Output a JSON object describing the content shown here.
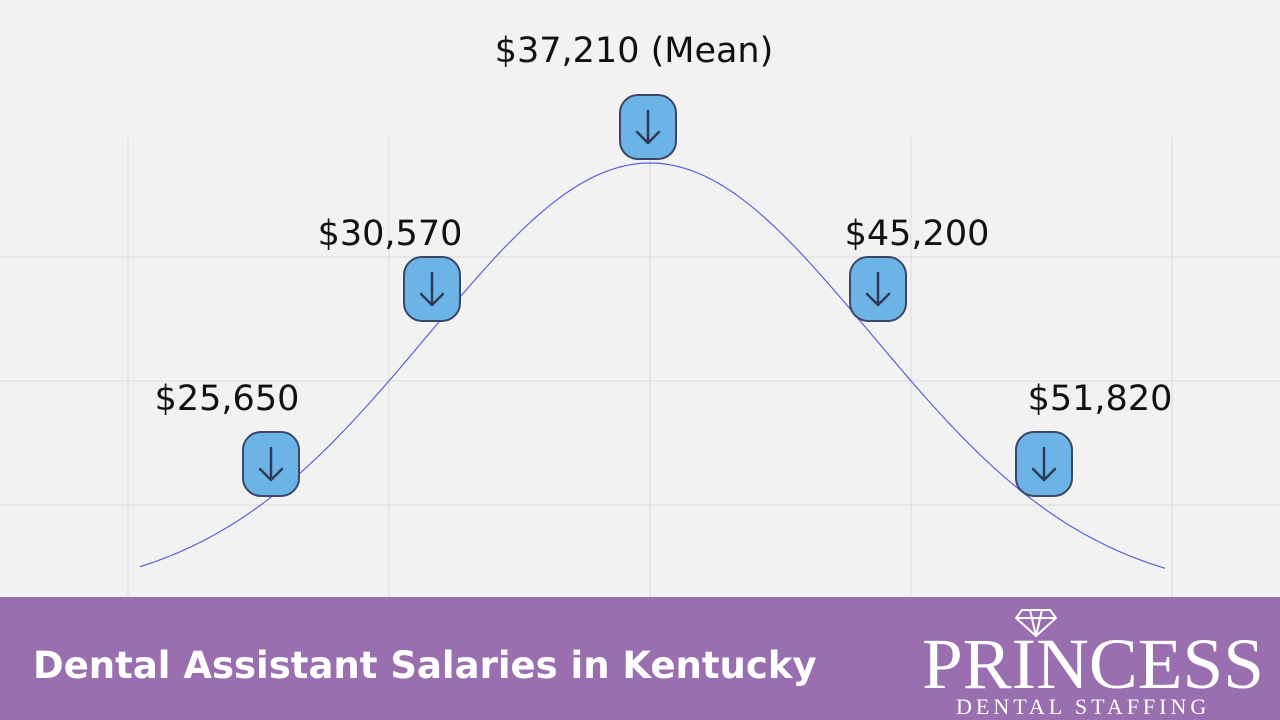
{
  "markers": [
    {
      "label": "$25,650"
    },
    {
      "label": "$30,570"
    },
    {
      "label": "$37,210 (Mean)"
    },
    {
      "label": "$45,200"
    },
    {
      "label": "$51,820"
    }
  ],
  "footer": {
    "title": "Dental Assistant Salaries in Kentucky"
  },
  "logo": {
    "name": "PRINCESS",
    "tagline": "DENTAL STAFFING"
  }
}
